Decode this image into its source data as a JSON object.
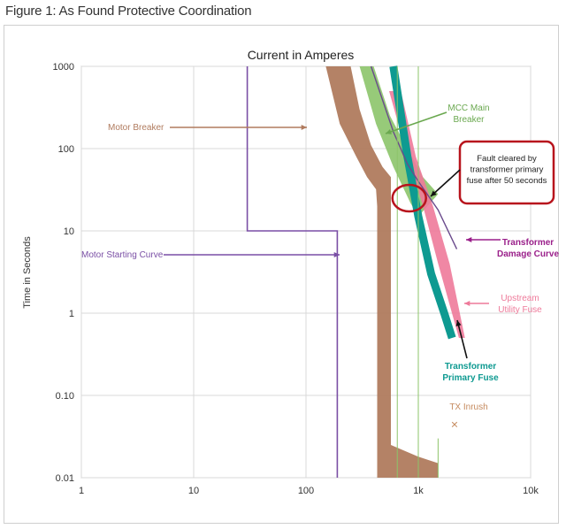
{
  "figure_title": "Figure 1: As Found Protective Coordination",
  "chart_data": {
    "type": "line",
    "title": "Current in Amperes",
    "xlabel": "",
    "ylabel": "Time in Seconds",
    "x_scale": "log",
    "y_scale": "log",
    "xlim": [
      1,
      10000
    ],
    "ylim": [
      0.01,
      1000
    ],
    "grid": true,
    "x_ticks": [
      {
        "value": 1,
        "label": "1"
      },
      {
        "value": 10,
        "label": "10"
      },
      {
        "value": 100,
        "label": "100"
      },
      {
        "value": 1000,
        "label": "1k"
      },
      {
        "value": 10000,
        "label": "10k"
      }
    ],
    "y_ticks": [
      {
        "value": 1000,
        "label": "1000"
      },
      {
        "value": 100,
        "label": "100"
      },
      {
        "value": 10,
        "label": "10"
      },
      {
        "value": 1,
        "label": "1"
      },
      {
        "value": 0.1,
        "label": "0.10"
      },
      {
        "value": 0.01,
        "label": "0.01"
      }
    ],
    "colors": {
      "motor_breaker": "#b07b5e",
      "motor_starting": "#7a4fa5",
      "mcc_main": "#8cc46a",
      "upstream_fuse": "#ee7a9a",
      "tx_fuse": "#0e9a91",
      "tx_damage": "#6a4a8c",
      "tx_damage_arrow": "#9a1f8a",
      "highlight": "#b8141d",
      "inrush": "#c58a5e",
      "grid": "#d8d8d8"
    },
    "series": [
      {
        "name": "Motor Breaker",
        "kind": "band",
        "upper": [
          [
            150,
            1000
          ],
          [
            200,
            200
          ],
          [
            280,
            80
          ],
          [
            350,
            45
          ],
          [
            420,
            32
          ],
          [
            430,
            20
          ],
          [
            430,
            0.01
          ]
        ],
        "lower": [
          [
            250,
            1000
          ],
          [
            300,
            300
          ],
          [
            380,
            110
          ],
          [
            480,
            60
          ],
          [
            570,
            45
          ],
          [
            570,
            0.025
          ],
          [
            1000,
            0.018
          ],
          [
            1500,
            0.015
          ],
          [
            1500,
            0.01
          ]
        ]
      },
      {
        "name": "Motor Starting Curve",
        "kind": "line",
        "points": [
          [
            30,
            1000
          ],
          [
            30,
            10
          ],
          [
            190,
            10
          ],
          [
            190,
            0.01
          ]
        ]
      },
      {
        "name": "MCC Main Breaker",
        "kind": "band",
        "upper": [
          [
            300,
            1000
          ],
          [
            420,
            200
          ],
          [
            600,
            60
          ],
          [
            850,
            22
          ],
          [
            1000,
            15
          ]
        ],
        "lower": [
          [
            400,
            1000
          ],
          [
            560,
            250
          ],
          [
            800,
            100
          ],
          [
            1100,
            45
          ],
          [
            1500,
            28
          ]
        ]
      },
      {
        "name": "Upstream Utility Fuse",
        "kind": "band",
        "upper": [
          [
            550,
            500
          ],
          [
            800,
            80
          ],
          [
            1100,
            20
          ],
          [
            1500,
            4
          ],
          [
            2300,
            0.5
          ]
        ],
        "lower": [
          [
            700,
            500
          ],
          [
            950,
            80
          ],
          [
            1350,
            20
          ],
          [
            1900,
            4
          ],
          [
            2600,
            0.5
          ]
        ]
      },
      {
        "name": "Transformer Primary Fuse",
        "kind": "line",
        "points": [
          [
            600,
            1000
          ],
          [
            800,
            80
          ],
          [
            1000,
            15
          ],
          [
            1300,
            3
          ],
          [
            1700,
            1
          ],
          [
            2000,
            0.5
          ]
        ]
      },
      {
        "name": "Transformer Damage Curve",
        "kind": "line",
        "points": [
          [
            380,
            1000
          ],
          [
            600,
            160
          ],
          [
            800,
            65
          ],
          [
            1000,
            40
          ],
          [
            1500,
            18
          ],
          [
            2200,
            6
          ]
        ]
      }
    ],
    "inrush_point": {
      "x": 2100,
      "y": 0.045
    },
    "fault_cleared": {
      "x": 830,
      "y": 25,
      "seconds": 50
    },
    "annotations": [
      {
        "text": "Motor Breaker"
      },
      {
        "text": "Motor Starting Curve"
      },
      {
        "text": "MCC Main Breaker"
      },
      {
        "text": "Fault cleared by transformer primary fuse after 50 seconds"
      },
      {
        "text": "Transformer Damage Curve"
      },
      {
        "text": "Upstream Utility Fuse"
      },
      {
        "text": "Transformer Primary Fuse"
      },
      {
        "text": "TX Inrush"
      }
    ],
    "labels": {
      "motor_breaker": "Motor Breaker",
      "motor_starting": "Motor Starting Curve",
      "mcc_main_1": "MCC Main",
      "mcc_main_2": "Breaker",
      "fault_1": "Fault cleared by",
      "fault_2": "transformer primary",
      "fault_3": "fuse after 50 seconds",
      "tx_damage_1": "Transformer",
      "tx_damage_2": "Damage Curve",
      "upstream_1": "Upstream",
      "upstream_2": "Utility Fuse",
      "tx_fuse_1": "Transformer",
      "tx_fuse_2": "Primary Fuse",
      "inrush": "TX Inrush",
      "inrush_marker": "×"
    }
  }
}
